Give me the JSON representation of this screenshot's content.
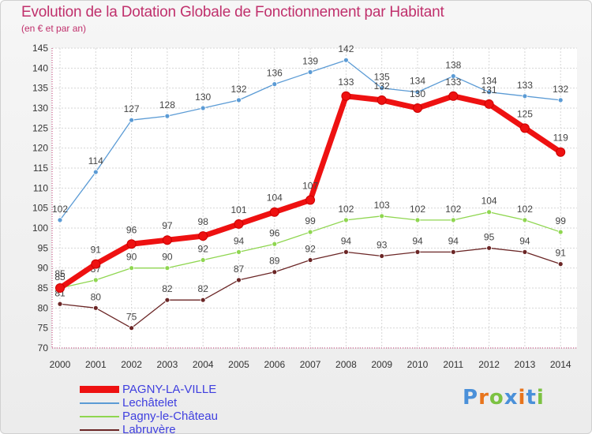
{
  "header": {
    "title": "Evolution de la Dotation Globale de Fonctionnement par Habitant",
    "subtitle": "(en € et par an)"
  },
  "chart_data": {
    "type": "line",
    "title": "Evolution de la Dotation Globale de Fonctionnement par Habitant",
    "subtitle": "(en € et par an)",
    "x": [
      "2000",
      "2001",
      "2002",
      "2003",
      "2004",
      "2005",
      "2006",
      "2007",
      "2008",
      "2009",
      "2010",
      "2011",
      "2012",
      "2013",
      "2014"
    ],
    "ylim": [
      70,
      145
    ],
    "yticks": [
      70,
      75,
      80,
      85,
      90,
      95,
      100,
      105,
      110,
      115,
      120,
      125,
      130,
      135,
      140,
      145
    ],
    "grid": true,
    "legend_position": "bottom-left",
    "series": [
      {
        "name": "PAGNY-LA-VILLE",
        "color": "#ee1111",
        "values": [
          85,
          91,
          96,
          97,
          98,
          101,
          104,
          107,
          133,
          132,
          130,
          133,
          131,
          125,
          119
        ]
      },
      {
        "name": "Lechâtelet",
        "color": "#5b9bd5",
        "values": [
          102,
          114,
          127,
          128,
          130,
          132,
          136,
          139,
          142,
          135,
          134,
          138,
          134,
          133,
          132
        ]
      },
      {
        "name": "Pagny-le-Château",
        "color": "#8fd650",
        "values": [
          85,
          87,
          90,
          90,
          92,
          94,
          96,
          99,
          102,
          103,
          102,
          102,
          104,
          102,
          99
        ]
      },
      {
        "name": "Labruyère",
        "color": "#6b2626",
        "values": [
          81,
          80,
          75,
          82,
          82,
          87,
          89,
          92,
          94,
          93,
          94,
          94,
          95,
          94,
          91
        ]
      }
    ]
  },
  "logo": {
    "letters": [
      "P",
      "r",
      "o",
      "x",
      "i",
      "t",
      "i"
    ],
    "colors": [
      "#4a90d9",
      "#e8741c",
      "#7cc242",
      "#4a90d9",
      "#e8741c",
      "#4a90d9",
      "#7cc242"
    ]
  }
}
